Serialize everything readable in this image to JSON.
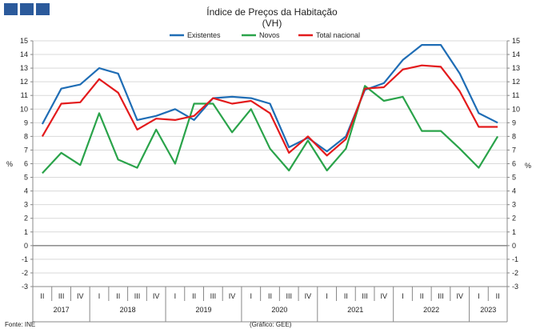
{
  "logo": {
    "icon": "institution-logo-icon",
    "color": "#2b5a9b"
  },
  "chart_data": {
    "type": "line",
    "title": "Índice de Preços da Habitação",
    "subtitle": "(VH)",
    "ylabel_left": "%",
    "ylabel_right": "%",
    "ylim": [
      -3,
      15
    ],
    "yticks": [
      -3,
      -2,
      -1,
      0,
      1,
      2,
      3,
      4,
      5,
      6,
      7,
      8,
      9,
      10,
      11,
      12,
      13,
      14,
      15
    ],
    "grid": true,
    "legend_position": "top",
    "quarters": [
      "II",
      "III",
      "IV",
      "I",
      "II",
      "III",
      "IV",
      "I",
      "II",
      "III",
      "IV",
      "I",
      "II",
      "III",
      "IV",
      "I",
      "II",
      "III",
      "IV",
      "I",
      "II",
      "III",
      "IV",
      "I",
      "II"
    ],
    "years": [
      {
        "label": "2017",
        "start": 0,
        "count": 3
      },
      {
        "label": "2018",
        "start": 3,
        "count": 4
      },
      {
        "label": "2019",
        "start": 7,
        "count": 4
      },
      {
        "label": "2020",
        "start": 11,
        "count": 4
      },
      {
        "label": "2021",
        "start": 15,
        "count": 4
      },
      {
        "label": "2022",
        "start": 19,
        "count": 4
      },
      {
        "label": "2023",
        "start": 23,
        "count": 2
      }
    ],
    "series": [
      {
        "name": "Existentes",
        "color": "#1f6db5",
        "values": [
          8.9,
          11.5,
          11.8,
          13.0,
          12.6,
          9.2,
          9.5,
          10.0,
          9.2,
          10.8,
          10.9,
          10.8,
          10.4,
          7.2,
          7.9,
          6.9,
          8.0,
          11.4,
          11.9,
          13.6,
          14.7,
          14.7,
          12.6,
          9.7,
          9.0
        ]
      },
      {
        "name": "Novos",
        "color": "#2aa34a",
        "values": [
          5.3,
          6.8,
          5.9,
          9.7,
          6.3,
          5.7,
          8.5,
          6.0,
          10.4,
          10.4,
          8.3,
          10.0,
          7.1,
          5.5,
          7.7,
          5.5,
          7.1,
          11.7,
          10.6,
          10.9,
          8.4,
          8.4,
          7.1,
          5.7,
          8.0
        ]
      },
      {
        "name": "Total nacional",
        "color": "#e31a1c",
        "values": [
          8.0,
          10.4,
          10.5,
          12.2,
          11.2,
          8.5,
          9.3,
          9.2,
          9.5,
          10.8,
          10.4,
          10.6,
          9.7,
          6.8,
          8.0,
          6.6,
          7.8,
          11.5,
          11.6,
          12.9,
          13.2,
          13.1,
          11.3,
          8.7,
          8.7
        ]
      }
    ]
  },
  "footer": {
    "source": "Fonte: INE",
    "credit": "(Gráfico: GEE)"
  }
}
